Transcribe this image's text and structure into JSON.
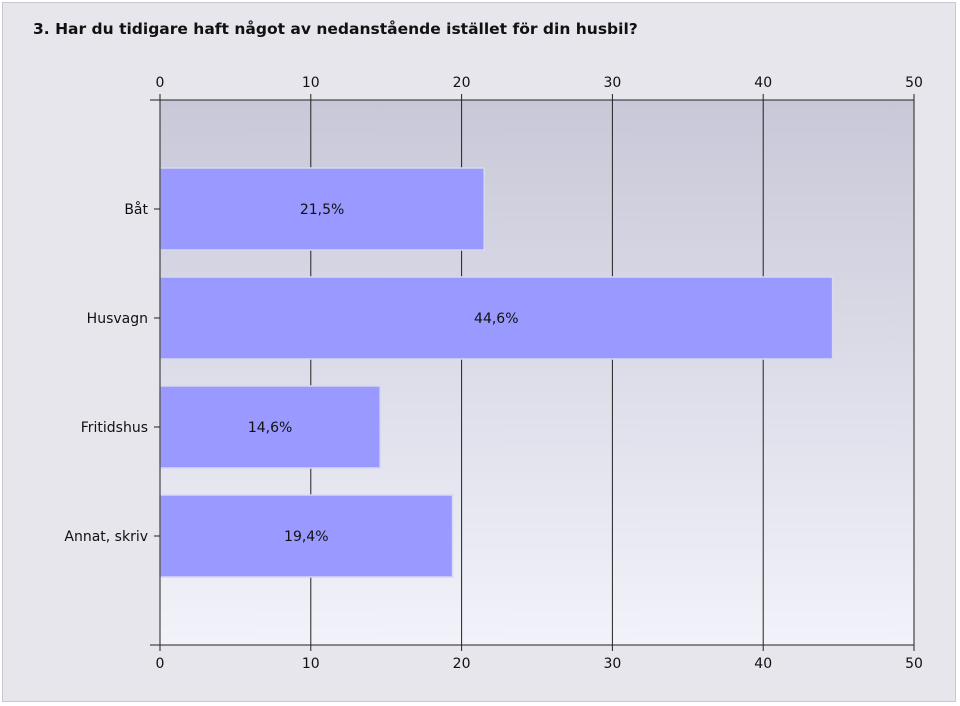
{
  "question_title": "3. Har du tidigare haft något av nedanstående istället för din husbil?",
  "colors": {
    "bar": "#9999ff",
    "bar_edge": "#d8d8f0",
    "plot_top": "#c8c8d8",
    "plot_bottom": "#f2f2fa",
    "grid": "#222222"
  },
  "chart_data": {
    "type": "bar",
    "orientation": "horizontal",
    "categories": [
      "Båt",
      "Husvagn",
      "Fritidshus",
      "Annat, skriv"
    ],
    "values": [
      21.5,
      44.6,
      14.6,
      19.4
    ],
    "value_labels": [
      "21,5%",
      "44,6%",
      "14,6%",
      "19,4%"
    ],
    "xlim": [
      0,
      50
    ],
    "xticks": [
      0,
      10,
      20,
      30,
      40,
      50
    ],
    "axis_top": true,
    "axis_bottom": true,
    "grid": true,
    "title": "",
    "xlabel": "",
    "ylabel": ""
  }
}
